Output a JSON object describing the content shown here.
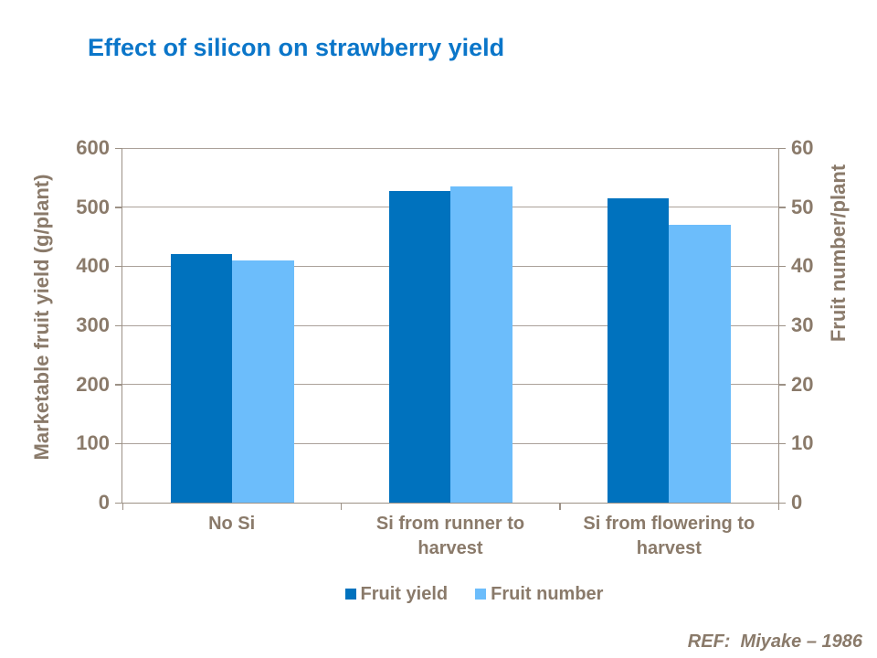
{
  "slide": {
    "title": "Effect of silicon on strawberry yield",
    "reference": "REF:  Miyake – 1986"
  },
  "chart_data": {
    "type": "bar",
    "title": "Effect of silicon on strawberry yield",
    "categories": [
      "No Si",
      "Si from runner to\nharvest",
      "Si from flowering to\nharvest"
    ],
    "series": [
      {
        "name": "Fruit yield",
        "axis": "left",
        "values": [
          420,
          528,
          515
        ]
      },
      {
        "name": "Fruit number",
        "axis": "right",
        "values": [
          41,
          53.5,
          47
        ]
      }
    ],
    "left_axis": {
      "label": "Marketable fruit yield (g/plant)",
      "min": 0,
      "max": 600,
      "step": 100
    },
    "right_axis": {
      "label": "Fruit number/plant",
      "min": 0,
      "max": 60,
      "step": 10
    },
    "legend_position": "bottom",
    "grid": true
  },
  "colors": {
    "title": "#0B76C9",
    "text": "#8A7A6A",
    "gridline": "#ABA19A",
    "axis_line": "#9C9186",
    "series1": "#0072BE",
    "series2": "#6CBDFB",
    "background": "#FFFFFF"
  }
}
